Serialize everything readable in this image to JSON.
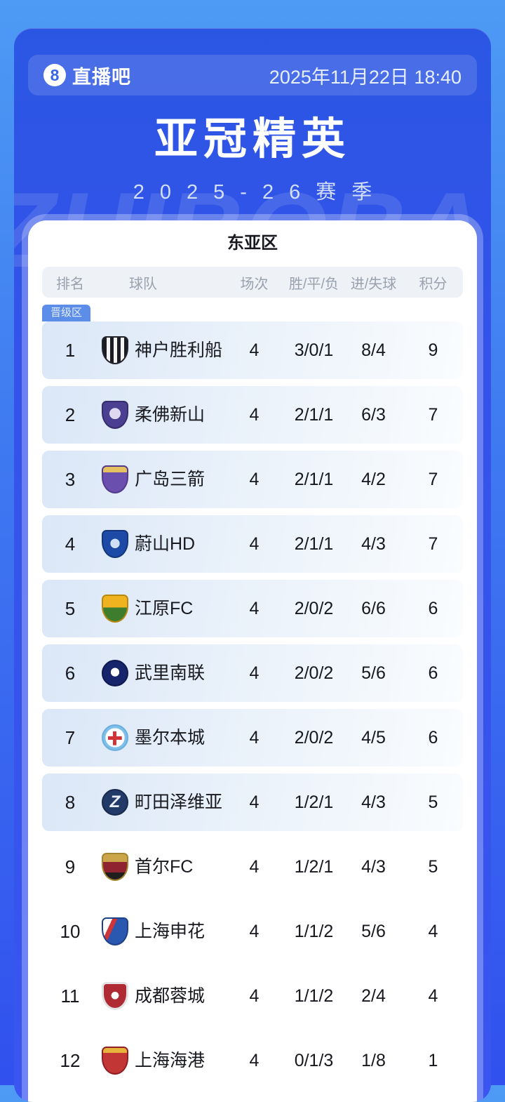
{
  "page": {
    "brand": "直播吧",
    "brand_logo_glyph": "8",
    "datetime": "2025年11月22日 18:40",
    "title": "亚冠精英",
    "season": "2025-26赛季",
    "watermark": "ZHIBOBA"
  },
  "colors": {
    "background_top": "#4d9bf4",
    "background_bottom": "#3150ee",
    "card_blue": "#2b56e3",
    "row_highlight": "#dbe7f7",
    "badge_blue": "#5b8de9",
    "header_gray_bg": "#eef1f6",
    "header_gray_text": "#98a1ad",
    "text_dark": "#16181d"
  },
  "table": {
    "region_title": "东亚区",
    "qualification_badge": "晋级区",
    "columns": [
      "排名",
      "球队",
      "场次",
      "胜/平/负",
      "进/失球",
      "积分"
    ],
    "rows": [
      {
        "rank": "1",
        "team": "神户胜利船",
        "icon": "vissel-kobe-crest",
        "shape": "crest-shield",
        "played": "4",
        "wdl": "3/0/1",
        "goals": "8/4",
        "points": "9",
        "highlight": true
      },
      {
        "rank": "2",
        "team": "柔佛新山",
        "icon": "johor-darul-tazim-crest",
        "shape": "crest-shield",
        "played": "4",
        "wdl": "2/1/1",
        "goals": "6/3",
        "points": "7",
        "highlight": true
      },
      {
        "rank": "3",
        "team": "广岛三箭",
        "icon": "sanfrecce-hiroshima-crest",
        "shape": "crest-shield",
        "played": "4",
        "wdl": "2/1/1",
        "goals": "4/2",
        "points": "7",
        "highlight": true
      },
      {
        "rank": "4",
        "team": "蔚山HD",
        "icon": "ulsan-hd-crest",
        "shape": "crest-shield",
        "played": "4",
        "wdl": "2/1/1",
        "goals": "4/3",
        "points": "7",
        "highlight": true
      },
      {
        "rank": "5",
        "team": "江原FC",
        "icon": "gangwon-fc-crest",
        "shape": "crest-shield",
        "played": "4",
        "wdl": "2/0/2",
        "goals": "6/6",
        "points": "6",
        "highlight": true
      },
      {
        "rank": "6",
        "team": "武里南联",
        "icon": "buriram-united-crest",
        "shape": "crest-circle",
        "played": "4",
        "wdl": "2/0/2",
        "goals": "5/6",
        "points": "6",
        "highlight": true
      },
      {
        "rank": "7",
        "team": "墨尔本城",
        "icon": "melbourne-city-crest",
        "shape": "crest-circle",
        "played": "4",
        "wdl": "2/0/2",
        "goals": "4/5",
        "points": "6",
        "highlight": true
      },
      {
        "rank": "8",
        "team": "町田泽维亚",
        "icon": "machida-zelvia-crest",
        "shape": "crest-circle",
        "played": "4",
        "wdl": "1/2/1",
        "goals": "4/3",
        "points": "5",
        "highlight": true
      },
      {
        "rank": "9",
        "team": "首尔FC",
        "icon": "fc-seoul-crest",
        "shape": "crest-shield",
        "played": "4",
        "wdl": "1/2/1",
        "goals": "4/3",
        "points": "5",
        "highlight": false
      },
      {
        "rank": "10",
        "team": "上海申花",
        "icon": "shanghai-shenhua-crest",
        "shape": "crest-shield",
        "played": "4",
        "wdl": "1/1/2",
        "goals": "5/6",
        "points": "4",
        "highlight": false
      },
      {
        "rank": "11",
        "team": "成都蓉城",
        "icon": "chengdu-rongcheng-crest",
        "shape": "crest-shield",
        "played": "4",
        "wdl": "1/1/2",
        "goals": "2/4",
        "points": "4",
        "highlight": false
      },
      {
        "rank": "12",
        "team": "上海海港",
        "icon": "shanghai-port-crest",
        "shape": "crest-shield",
        "played": "4",
        "wdl": "0/1/3",
        "goals": "1/8",
        "points": "1",
        "highlight": false
      }
    ]
  }
}
